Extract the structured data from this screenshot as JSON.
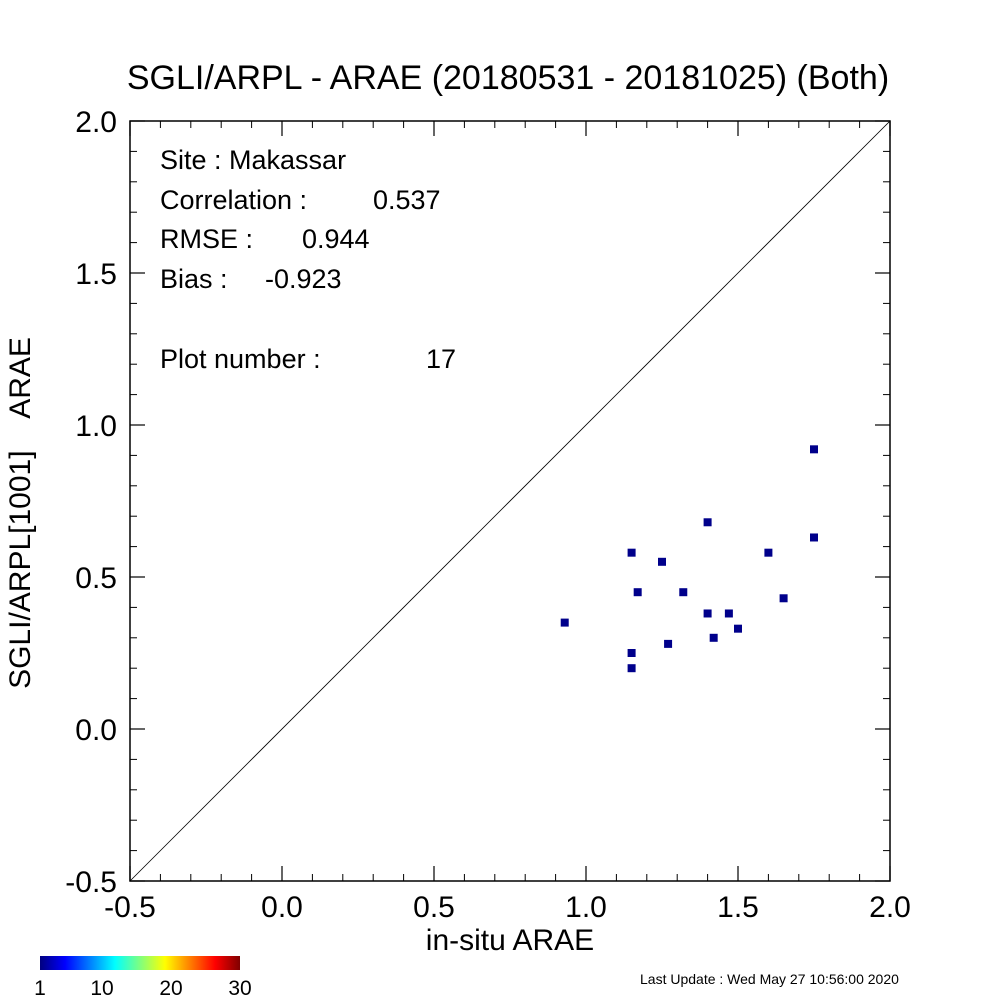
{
  "chart_data": {
    "type": "scatter",
    "title": "SGLI/ARPL - ARAE (20180531 - 20181025) (Both)",
    "xlabel": "in-situ ARAE",
    "ylabel": "SGLI/ARPL[1001]    ARAE",
    "xlim": [
      -0.5,
      2.0
    ],
    "ylim": [
      -0.5,
      2.0
    ],
    "xticks": [
      -0.5,
      0.0,
      0.5,
      1.0,
      1.5,
      2.0
    ],
    "yticks": [
      -0.5,
      0.0,
      0.5,
      1.0,
      1.5,
      2.0
    ],
    "x_tick_labels": [
      "-0.5",
      "0.0",
      "0.5",
      "1.0",
      "1.5",
      "2.0"
    ],
    "y_tick_labels": [
      "-0.5",
      "0.0",
      "0.5",
      "1.0",
      "1.5",
      "2.0"
    ],
    "identity_line": true,
    "grid": false,
    "marker_color": "#00008b",
    "points": [
      {
        "x": 0.93,
        "y": 0.35
      },
      {
        "x": 1.15,
        "y": 0.58
      },
      {
        "x": 1.15,
        "y": 0.25
      },
      {
        "x": 1.15,
        "y": 0.2
      },
      {
        "x": 1.17,
        "y": 0.45
      },
      {
        "x": 1.25,
        "y": 0.55
      },
      {
        "x": 1.27,
        "y": 0.28
      },
      {
        "x": 1.32,
        "y": 0.45
      },
      {
        "x": 1.4,
        "y": 0.68
      },
      {
        "x": 1.4,
        "y": 0.38
      },
      {
        "x": 1.42,
        "y": 0.3
      },
      {
        "x": 1.47,
        "y": 0.38
      },
      {
        "x": 1.5,
        "y": 0.33
      },
      {
        "x": 1.6,
        "y": 0.58
      },
      {
        "x": 1.65,
        "y": 0.43
      },
      {
        "x": 1.75,
        "y": 0.92
      },
      {
        "x": 1.75,
        "y": 0.63
      }
    ],
    "stats": [
      {
        "label": "Site : Makassar",
        "value": ""
      },
      {
        "label": "Correlation :",
        "value": "0.537"
      },
      {
        "label": "RMSE :",
        "value": "0.944"
      },
      {
        "label": "Bias :",
        "value": "-0.923"
      },
      {
        "label": "Plot number :",
        "value": "17"
      }
    ],
    "colorbar": {
      "colors": [
        "#00007f",
        "#0000ff",
        "#007fff",
        "#00ffff",
        "#7fff7f",
        "#ffff00",
        "#ff7f00",
        "#ff0000",
        "#7f0000"
      ],
      "tick_labels": [
        "1",
        "10",
        "20",
        "30"
      ],
      "tick_values": [
        1,
        10,
        20,
        30
      ],
      "range": [
        1,
        30
      ]
    }
  },
  "footer": {
    "last_update": "Last Update : Wed May 27 10:56:00 2020"
  }
}
